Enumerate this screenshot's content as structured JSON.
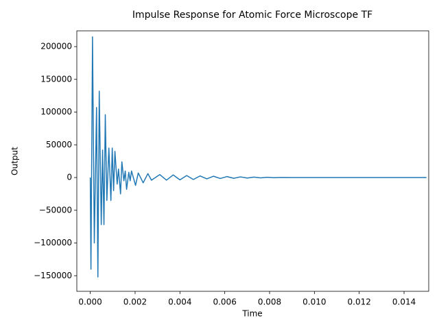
{
  "chart_data": {
    "type": "line",
    "title": "Impulse Response for Atomic Force Microscope TF",
    "x_label": "Time",
    "y_label": "Output",
    "x": [
      0,
      3e-05,
      0.0001,
      0.00018,
      0.00028,
      0.00034,
      0.0004,
      0.00049,
      0.00055,
      0.00061,
      0.00067,
      0.00074,
      0.00083,
      0.00092,
      0.00098,
      0.00104,
      0.0011,
      0.0012,
      0.00126,
      0.00135,
      0.00141,
      0.0015,
      0.00156,
      0.00162,
      0.00172,
      0.00178,
      0.00184,
      0.00202,
      0.00214,
      0.00236,
      0.00257,
      0.00273,
      0.0031,
      0.0034,
      0.0037,
      0.004,
      0.0043,
      0.0046,
      0.0049,
      0.0052,
      0.0055,
      0.0058,
      0.0061,
      0.0064,
      0.0067,
      0.007,
      0.0073,
      0.0076,
      0.0079,
      0.0082,
      0.0085,
      0.009,
      0.015
    ],
    "series": [
      {
        "name": "Output",
        "color": "#1f77b4",
        "values": [
          0,
          -140000,
          215000,
          -100000,
          107000,
          -152000,
          132000,
          -72000,
          42000,
          -72000,
          96000,
          -35000,
          45000,
          -35000,
          45000,
          -20000,
          40000,
          -10000,
          13000,
          -25000,
          24000,
          -5000,
          10000,
          -18000,
          8000,
          -5000,
          10000,
          -12000,
          7000,
          -8000,
          6000,
          -4000,
          4500,
          -4000,
          4000,
          -3500,
          3000,
          -3000,
          2500,
          -2000,
          2000,
          -1500,
          1500,
          -1200,
          1000,
          -800,
          700,
          -500,
          400,
          -300,
          200,
          0,
          0
        ]
      }
    ],
    "xlim": [
      -0.0006,
      0.0151
    ],
    "xticks": [
      {
        "value": 0,
        "label": "0.000"
      },
      {
        "value": 0.002,
        "label": "0.002"
      },
      {
        "value": 0.004,
        "label": "0.004"
      },
      {
        "value": 0.006,
        "label": "0.006"
      },
      {
        "value": 0.008,
        "label": "0.008"
      },
      {
        "value": 0.01,
        "label": "0.010"
      },
      {
        "value": 0.012,
        "label": "0.012"
      },
      {
        "value": 0.014,
        "label": "0.014"
      }
    ],
    "ylim": [
      -173800,
      224100
    ],
    "yticks": [
      {
        "value": -150000,
        "label": "−150000"
      },
      {
        "value": -100000,
        "label": "−100000"
      },
      {
        "value": -50000,
        "label": "−50000"
      },
      0,
      50000,
      100000,
      150000,
      200000
    ],
    "grid": false
  }
}
